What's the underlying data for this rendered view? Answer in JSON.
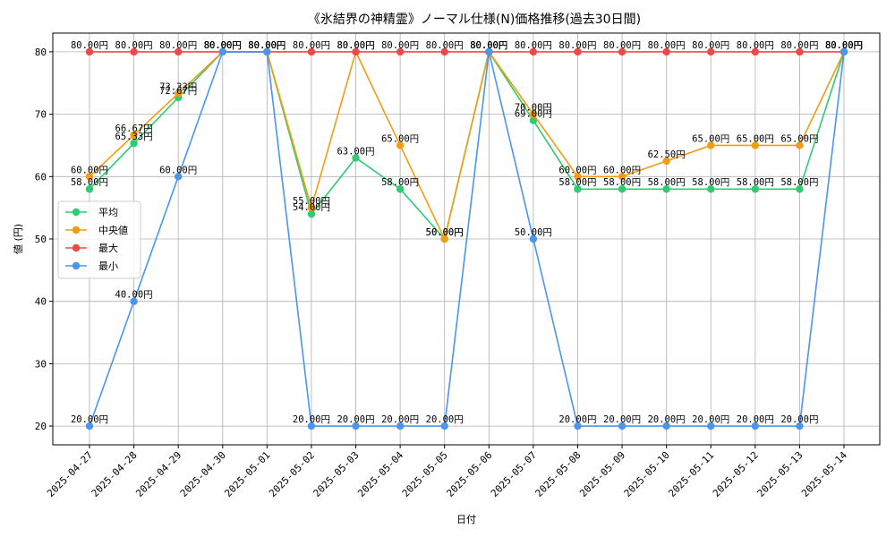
{
  "chart_data": {
    "type": "line",
    "title": "《氷結界の神精霊》ノーマル仕様(N)価格推移(過去30日間)",
    "xlabel": "日付",
    "ylabel": "値 (円)",
    "ylim": [
      17,
      83
    ],
    "yticks": [
      20,
      30,
      40,
      50,
      60,
      70,
      80
    ],
    "grid": true,
    "legend_position": "center-left",
    "value_suffix": "円",
    "categories": [
      "2025-04-27",
      "2025-04-28",
      "2025-04-29",
      "2025-04-30",
      "2025-05-01",
      "2025-05-02",
      "2025-05-03",
      "2025-05-04",
      "2025-05-05",
      "2025-05-06",
      "2025-05-07",
      "2025-05-08",
      "2025-05-09",
      "2025-05-10",
      "2025-05-11",
      "2025-05-12",
      "2025-05-13",
      "2025-05-14"
    ],
    "series": [
      {
        "name": "平均",
        "color": "#2ecc71",
        "values": [
          58,
          65.33,
          72.67,
          80,
          80,
          54,
          63,
          58,
          50,
          80,
          69,
          58,
          58,
          58,
          58,
          58,
          58,
          80
        ]
      },
      {
        "name": "中央値",
        "color": "#f39c12",
        "values": [
          60,
          66.67,
          73.33,
          80,
          80,
          55,
          80,
          65,
          50,
          80,
          70,
          60,
          60,
          62.5,
          65,
          65,
          65,
          80
        ]
      },
      {
        "name": "最大",
        "color": "#f04848",
        "values": [
          80,
          80,
          80,
          80,
          80,
          80,
          80,
          80,
          80,
          80,
          80,
          80,
          80,
          80,
          80,
          80,
          80,
          80
        ]
      },
      {
        "name": "最小",
        "color": "#4a95f0",
        "values": [
          20,
          40,
          60,
          80,
          80,
          20,
          20,
          20,
          20,
          80,
          50,
          20,
          20,
          20,
          20,
          20,
          20,
          80
        ]
      }
    ]
  }
}
